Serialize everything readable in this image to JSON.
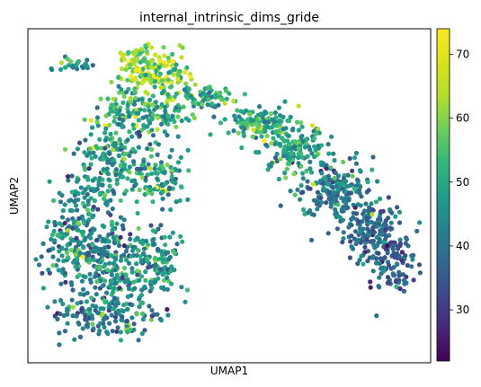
{
  "chart_data": {
    "type": "scatter",
    "title": "internal_intrinsic_dims_gride",
    "xlabel": "UMAP1",
    "ylabel": "UMAP2",
    "x_ticks": "none",
    "y_ticks": "none",
    "colorbar": {
      "colormap": "viridis",
      "range": [
        22,
        74
      ],
      "ticks": [
        30,
        40,
        50,
        60,
        70
      ]
    },
    "clusters": [
      {
        "region": "upper-left island",
        "center": [
          0.12,
          0.9
        ],
        "value_mean": 44
      },
      {
        "region": "top bright cluster",
        "center": [
          0.33,
          0.87
        ],
        "value_mean": 62
      },
      {
        "region": "left body upper",
        "center": [
          0.27,
          0.6
        ],
        "value_mean": 47
      },
      {
        "region": "left body lower",
        "center": [
          0.25,
          0.28
        ],
        "value_mean": 45
      },
      {
        "region": "right diagonal arm upper",
        "center": [
          0.66,
          0.63
        ],
        "value_mean": 48
      },
      {
        "region": "right diagonal arm lower",
        "center": [
          0.85,
          0.38
        ],
        "value_mean": 38
      }
    ],
    "grid": false,
    "legend": "colorbar-right"
  }
}
